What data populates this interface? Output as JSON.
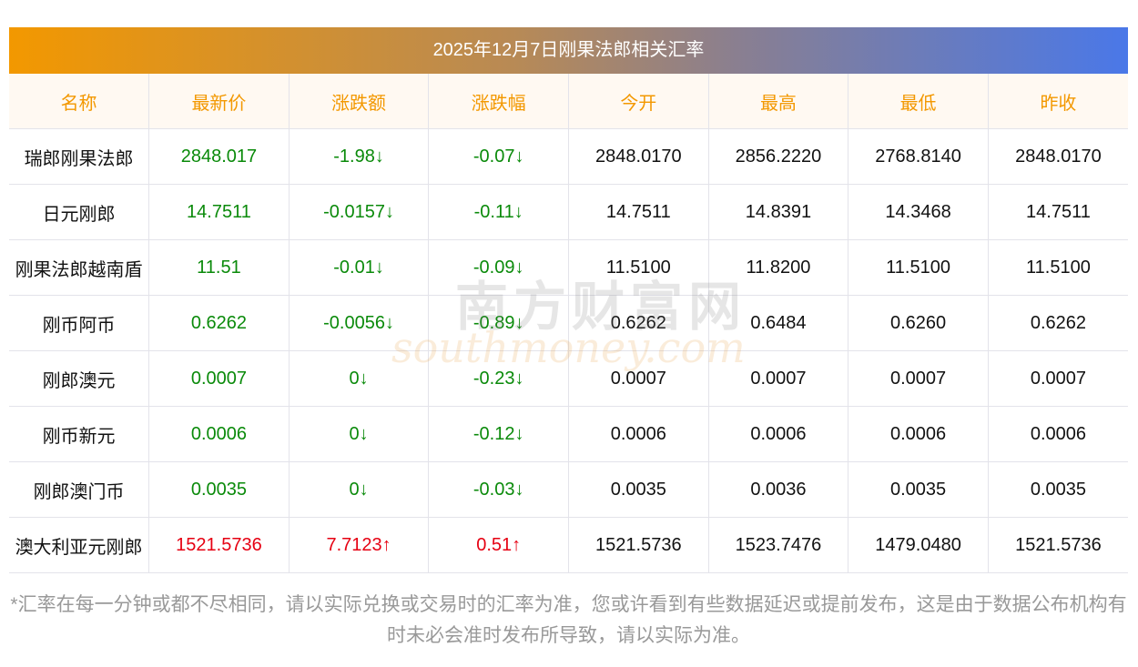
{
  "title": "2025年12月7日刚果法郎相关汇率",
  "columns": [
    "名称",
    "最新价",
    "涨跌额",
    "涨跌幅",
    "今开",
    "最高",
    "最低",
    "昨收"
  ],
  "rows": [
    {
      "name": "瑞郎刚果法郎",
      "latest": "2848.017",
      "change": "-1.98↓",
      "pct": "-0.07↓",
      "open": "2848.0170",
      "high": "2856.2220",
      "low": "2768.8140",
      "prev": "2848.0170",
      "dir": "down"
    },
    {
      "name": "日元刚郎",
      "latest": "14.7511",
      "change": "-0.0157↓",
      "pct": "-0.11↓",
      "open": "14.7511",
      "high": "14.8391",
      "low": "14.3468",
      "prev": "14.7511",
      "dir": "down"
    },
    {
      "name": "刚果法郎越南盾",
      "latest": "11.51",
      "change": "-0.01↓",
      "pct": "-0.09↓",
      "open": "11.5100",
      "high": "11.8200",
      "low": "11.5100",
      "prev": "11.5100",
      "dir": "down"
    },
    {
      "name": "刚币阿币",
      "latest": "0.6262",
      "change": "-0.0056↓",
      "pct": "-0.89↓",
      "open": "0.6262",
      "high": "0.6484",
      "low": "0.6260",
      "prev": "0.6262",
      "dir": "down"
    },
    {
      "name": "刚郎澳元",
      "latest": "0.0007",
      "change": "0↓",
      "pct": "-0.23↓",
      "open": "0.0007",
      "high": "0.0007",
      "low": "0.0007",
      "prev": "0.0007",
      "dir": "down"
    },
    {
      "name": "刚币新元",
      "latest": "0.0006",
      "change": "0↓",
      "pct": "-0.12↓",
      "open": "0.0006",
      "high": "0.0006",
      "low": "0.0006",
      "prev": "0.0006",
      "dir": "down"
    },
    {
      "name": "刚郎澳门币",
      "latest": "0.0035",
      "change": "0↓",
      "pct": "-0.03↓",
      "open": "0.0035",
      "high": "0.0036",
      "low": "0.0035",
      "prev": "0.0035",
      "dir": "down"
    },
    {
      "name": "澳大利亚元刚郎",
      "latest": "1521.5736",
      "change": "7.7123↑",
      "pct": "0.51↑",
      "open": "1521.5736",
      "high": "1523.7476",
      "low": "1479.0480",
      "prev": "1521.5736",
      "dir": "up"
    }
  ],
  "note": "*汇率在每一分钟或都不尽相同，请以实际兑换或交易时的汇率为准，您或许看到有些数据延迟或提前发布，这是由于数据公布机构有时未必会准时发布所导致，请以实际为准。",
  "watermark": {
    "cn": "南方财富网",
    "en": "southmoney.com"
  },
  "colors": {
    "up": "#e60012",
    "down": "#0a8a0a",
    "header": "#f39800"
  }
}
